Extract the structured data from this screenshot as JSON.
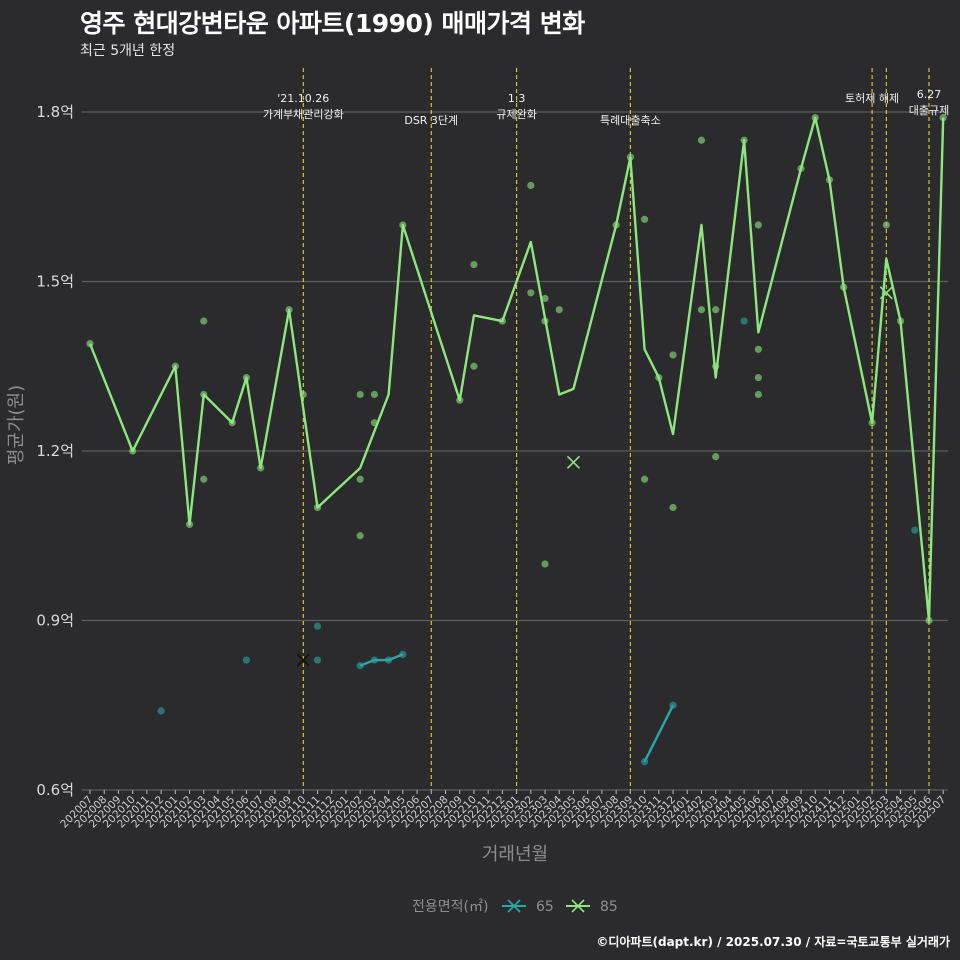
{
  "chart_data": {
    "type": "line",
    "title": "영주 현대강변타운 아파트(1990) 매매가격 변화",
    "subtitle": "최근 5개년 한정",
    "xlabel": "거래년월",
    "ylabel": "평균가(원)",
    "caption": "©디아파트(dapt.kr) / 2025.07.30 / 자료=국토교통부 실거래가",
    "legend_title": "전용면적(㎡)",
    "legend_position": "bottom",
    "grid": "horizontal",
    "ylim": [
      0.6,
      1.9
    ],
    "yticks": [
      0.6,
      0.9,
      1.2,
      1.5,
      1.8
    ],
    "ytick_labels": [
      "0.6억",
      "0.9억",
      "1.2억",
      "1.5억",
      "1.8억"
    ],
    "categories": [
      "202007",
      "202008",
      "202009",
      "202010",
      "202011",
      "202012",
      "202101",
      "202102",
      "202103",
      "202104",
      "202105",
      "202106",
      "202107",
      "202108",
      "202109",
      "202110",
      "202111",
      "202112",
      "202201",
      "202202",
      "202203",
      "202204",
      "202205",
      "202206",
      "202207",
      "202208",
      "202209",
      "202210",
      "202211",
      "202212",
      "202301",
      "202302",
      "202303",
      "202304",
      "202305",
      "202306",
      "202307",
      "202308",
      "202309",
      "202310",
      "202311",
      "202312",
      "202401",
      "202402",
      "202403",
      "202404",
      "202405",
      "202406",
      "202407",
      "202408",
      "202409",
      "202410",
      "202411",
      "202412",
      "202501",
      "202502",
      "202503",
      "202504",
      "202505",
      "202506",
      "202507"
    ],
    "series": [
      {
        "name": "65",
        "color": "#2aa8a8",
        "line": [
          [
            "202202",
            0.82
          ],
          [
            "202203",
            0.83
          ],
          [
            "202204",
            0.83
          ],
          [
            "202205",
            0.84
          ],
          [
            "202310",
            0.65
          ],
          [
            "202312",
            0.75
          ]
        ],
        "points": [
          [
            "202012",
            0.74
          ],
          [
            "202106",
            0.83
          ],
          [
            "202111",
            0.89
          ],
          [
            "202111",
            0.83
          ],
          [
            "202202",
            0.82
          ],
          [
            "202203",
            0.83
          ],
          [
            "202204",
            0.83
          ],
          [
            "202205",
            0.84
          ],
          [
            "202310",
            0.65
          ],
          [
            "202312",
            0.75
          ],
          [
            "202405",
            1.43
          ],
          [
            "202505",
            1.06
          ]
        ],
        "cross": [
          [
            "202110",
            0.83
          ]
        ]
      },
      {
        "name": "85",
        "color": "#8ee67e",
        "line": [
          [
            "202007",
            1.39
          ],
          [
            "202010",
            1.2
          ],
          [
            "202101",
            1.35
          ],
          [
            "202102",
            1.07
          ],
          [
            "202103",
            1.3
          ],
          [
            "202105",
            1.25
          ],
          [
            "202106",
            1.33
          ],
          [
            "202107",
            1.17
          ],
          [
            "202109",
            1.45
          ],
          [
            "202111",
            1.1
          ],
          [
            "202202",
            1.17
          ],
          [
            "202204",
            1.3
          ],
          [
            "202205",
            1.6
          ],
          [
            "202209",
            1.29
          ],
          [
            "202210",
            1.44
          ],
          [
            "202212",
            1.43
          ],
          [
            "202302",
            1.57
          ],
          [
            "202304",
            1.3
          ],
          [
            "202305",
            1.31
          ],
          [
            "202308",
            1.6
          ],
          [
            "202309",
            1.72
          ],
          [
            "202310",
            1.38
          ],
          [
            "202311",
            1.33
          ],
          [
            "202312",
            1.23
          ],
          [
            "202402",
            1.6
          ],
          [
            "202403",
            1.33
          ],
          [
            "202405",
            1.75
          ],
          [
            "202406",
            1.41
          ],
          [
            "202409",
            1.7
          ],
          [
            "202410",
            1.79
          ],
          [
            "202411",
            1.68
          ],
          [
            "202412",
            1.49
          ],
          [
            "202502",
            1.25
          ],
          [
            "202503",
            1.54
          ],
          [
            "202504",
            1.43
          ],
          [
            "202506",
            0.9
          ],
          [
            "202507",
            1.79
          ]
        ],
        "points": [
          [
            "202007",
            1.39
          ],
          [
            "202010",
            1.2
          ],
          [
            "202101",
            1.35
          ],
          [
            "202102",
            1.07
          ],
          [
            "202103",
            1.43
          ],
          [
            "202103",
            1.3
          ],
          [
            "202103",
            1.15
          ],
          [
            "202105",
            1.25
          ],
          [
            "202106",
            1.33
          ],
          [
            "202107",
            1.17
          ],
          [
            "202109",
            1.45
          ],
          [
            "202110",
            1.3
          ],
          [
            "202111",
            1.1
          ],
          [
            "202202",
            1.3
          ],
          [
            "202202",
            1.15
          ],
          [
            "202202",
            1.05
          ],
          [
            "202203",
            1.3
          ],
          [
            "202203",
            1.25
          ],
          [
            "202205",
            1.6
          ],
          [
            "202209",
            1.29
          ],
          [
            "202210",
            1.53
          ],
          [
            "202210",
            1.35
          ],
          [
            "202212",
            1.43
          ],
          [
            "202302",
            1.67
          ],
          [
            "202302",
            1.48
          ],
          [
            "202303",
            1.47
          ],
          [
            "202303",
            1.43
          ],
          [
            "202303",
            1.0
          ],
          [
            "202304",
            1.45
          ],
          [
            "202308",
            1.6
          ],
          [
            "202309",
            1.72
          ],
          [
            "202310",
            1.61
          ],
          [
            "202310",
            1.15
          ],
          [
            "202311",
            1.33
          ],
          [
            "202312",
            1.37
          ],
          [
            "202312",
            1.1
          ],
          [
            "202402",
            1.75
          ],
          [
            "202402",
            1.45
          ],
          [
            "202403",
            1.45
          ],
          [
            "202403",
            1.35
          ],
          [
            "202403",
            1.19
          ],
          [
            "202405",
            1.75
          ],
          [
            "202406",
            1.6
          ],
          [
            "202406",
            1.38
          ],
          [
            "202406",
            1.33
          ],
          [
            "202406",
            1.3
          ],
          [
            "202409",
            1.7
          ],
          [
            "202410",
            1.79
          ],
          [
            "202411",
            1.68
          ],
          [
            "202412",
            1.49
          ],
          [
            "202502",
            1.25
          ],
          [
            "202503",
            1.6
          ],
          [
            "202504",
            1.43
          ],
          [
            "202506",
            0.9
          ],
          [
            "202507",
            1.79
          ]
        ],
        "cross": [
          [
            "202305",
            1.18
          ],
          [
            "202503",
            1.48
          ]
        ]
      }
    ],
    "events": [
      {
        "month": "202110",
        "label": "'21.10.26\n가계부채관리강화",
        "row": 0
      },
      {
        "month": "202207",
        "label": "DSR 3단계",
        "row": 1
      },
      {
        "month": "202301",
        "label": "1.3\n규제완화",
        "row": 0
      },
      {
        "month": "202309",
        "label": "특례대출축소",
        "row": 1
      },
      {
        "month": "202502",
        "label": "토허제 해제",
        "row": 2
      },
      {
        "month": "202503",
        "label": "",
        "row": 2
      },
      {
        "month": "202506",
        "label": "6.27\n대출규제",
        "row": 3
      }
    ]
  }
}
